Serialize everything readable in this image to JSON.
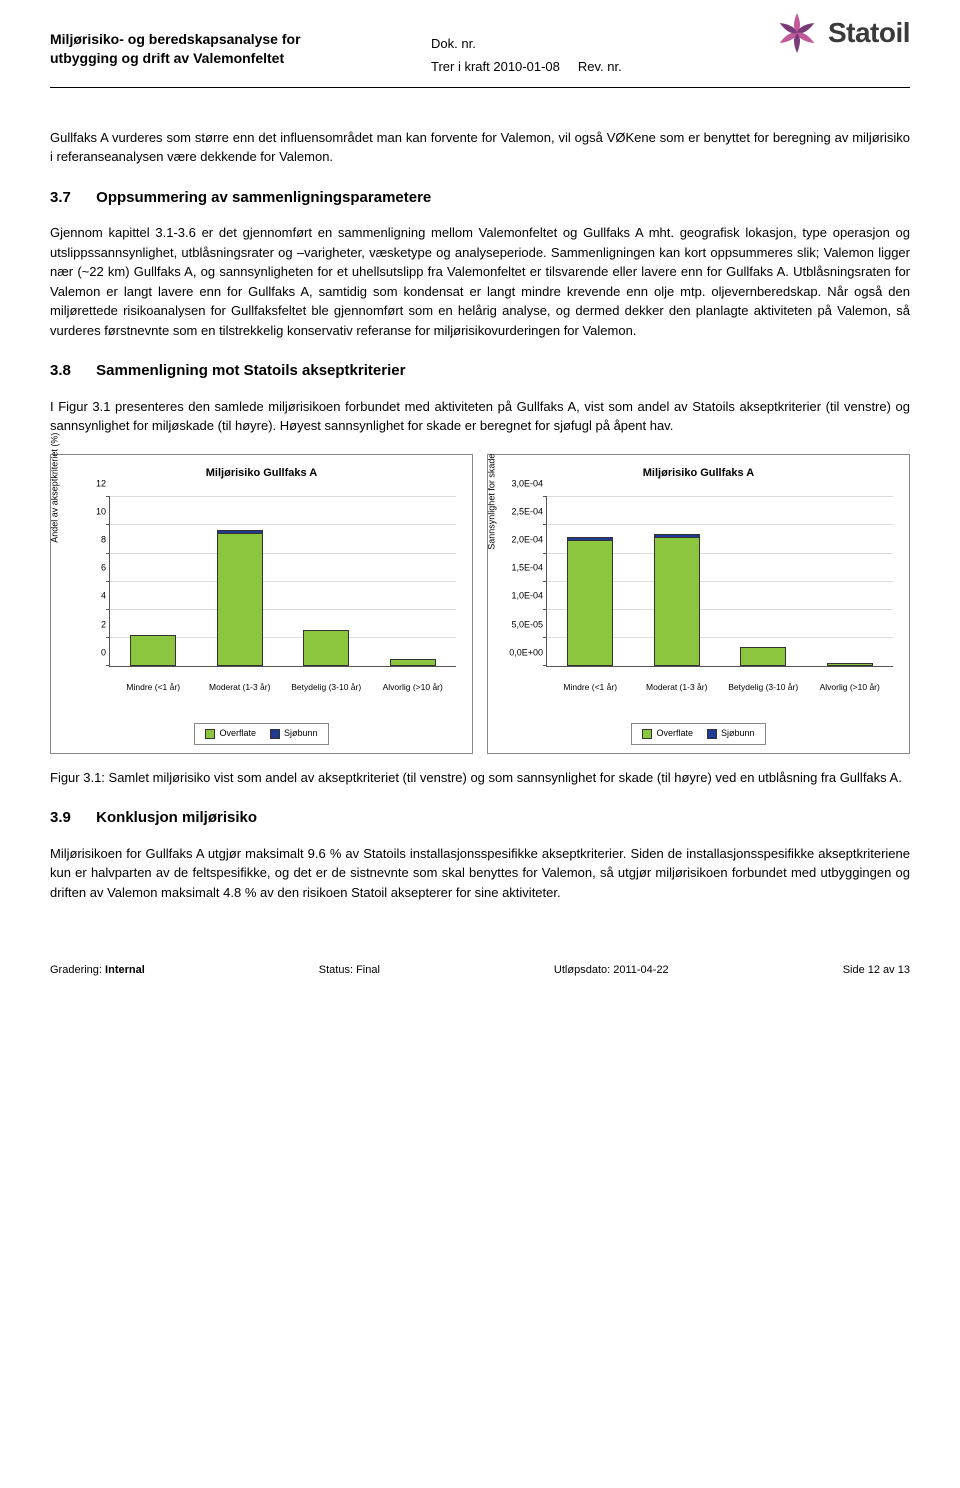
{
  "header": {
    "title_line1": "Miljørisiko- og beredskapsanalyse for",
    "title_line2": "utbygging og drift av Valemonfeltet",
    "dok_nr_label": "Dok. nr.",
    "trer_label": "Trer i kraft 2010-01-08",
    "rev_label": "Rev. nr.",
    "logo_text": "Statoil"
  },
  "para1": "Gullfaks A vurderes som større enn det influensområdet man kan forvente for Valemon, vil også VØKene som er benyttet for beregning av miljørisiko i referanseanalysen være dekkende for Valemon.",
  "h37_num": "3.7",
  "h37_title": "Oppsummering av sammenligningsparametere",
  "para37": "Gjennom kapittel 3.1-3.6 er det gjennomført en sammenligning mellom Valemonfeltet og Gullfaks A mht. geografisk lokasjon, type operasjon og utslippssannsynlighet, utblåsningsrater og –varigheter, væsketype og analyseperiode. Sammenligningen kan kort oppsummeres slik; Valemon ligger nær (~22 km) Gullfaks A, og sannsynligheten for et uhellsutslipp fra Valemonfeltet er tilsvarende eller lavere enn for Gullfaks A. Utblåsningsraten for Valemon er langt lavere enn for Gullfaks A, samtidig som kondensat er langt mindre krevende enn olje mtp. oljevernberedskap. Når også den miljørettede risikoanalysen for Gullfaksfeltet ble gjennomført som en helårig analyse, og dermed dekker den planlagte aktiviteten på Valemon, så vurderes førstnevnte som en tilstrekkelig konservativ referanse for miljørisikovurderingen for Valemon.",
  "h38_num": "3.8",
  "h38_title": "Sammenligning mot Statoils akseptkriterier",
  "para38": "I Figur 3.1 presenteres den samlede miljørisikoen forbundet med aktiviteten på Gullfaks A, vist som andel av Statoils akseptkriterier (til venstre) og sannsynlighet for miljøskade (til høyre). Høyest sannsynlighet for skade er beregnet for sjøfugl på åpent hav.",
  "chart_left": {
    "title": "Miljørisiko Gullfaks A",
    "ylabel": "Andel av akseptkriteriet (%)",
    "ymax": 12,
    "ytick_step": 2,
    "yticks": [
      "0",
      "2",
      "4",
      "6",
      "8",
      "10",
      "12"
    ],
    "categories": [
      "Mindre (<1 år)",
      "Moderat (1-3 år)",
      "Betydelig (3-10 år)",
      "Alvorlig (>10 år)"
    ],
    "overflate": [
      2.2,
      9.5,
      2.6,
      0.5
    ],
    "sjobunn": [
      0.0,
      0.15,
      0.0,
      0.0
    ],
    "color_overflate": "#8cc63f",
    "color_sjobunn": "#1f3a93",
    "grid_color": "#dddddd",
    "legend": [
      "Overflate",
      "Sjøbunn"
    ]
  },
  "chart_right": {
    "title": "Miljørisiko Gullfaks A",
    "ylabel": "Sannsynlighet for skade",
    "ymax": 0.0003,
    "yticks": [
      "0,0E+00",
      "5,0E-05",
      "1,0E-04",
      "1,5E-04",
      "2,0E-04",
      "2,5E-04",
      "3,0E-04"
    ],
    "categories": [
      "Mindre (<1 år)",
      "Moderat (1-3 år)",
      "Betydelig (3-10 år)",
      "Alvorlig (>10 år)"
    ],
    "overflate": [
      0.000225,
      0.00023,
      3.5e-05,
      6e-06
    ],
    "sjobunn": [
      4e-06,
      4e-06,
      0.0,
      0.0
    ],
    "color_overflate": "#8cc63f",
    "color_sjobunn": "#1f3a93",
    "legend": [
      "Overflate",
      "Sjøbunn"
    ]
  },
  "figure_caption": "Figur 3.1: Samlet miljørisiko vist som andel av akseptkriteriet (til venstre) og som sannsynlighet for skade (til høyre) ved en utblåsning fra Gullfaks A.",
  "h39_num": "3.9",
  "h39_title": "Konklusjon miljørisiko",
  "para39": "Miljørisikoen for Gullfaks A utgjør maksimalt 9.6 % av Statoils installasjonsspesifikke akseptkriterier. Siden de installasjonsspesifikke akseptkriteriene kun er halvparten av de feltspesifikke, og det er de sistnevnte som skal benyttes for Valemon, så utgjør miljørisikoen forbundet med utbyggingen og driften av Valemon maksimalt 4.8 % av den risikoen Statoil aksepterer for sine aktiviteter.",
  "footer": {
    "left_label": "Gradering:",
    "left_value": "Internal",
    "mid_label": "Status: Final",
    "mid2_label": "Utløpsdato: 2011-04-22",
    "right": "Side 12 av 13"
  }
}
